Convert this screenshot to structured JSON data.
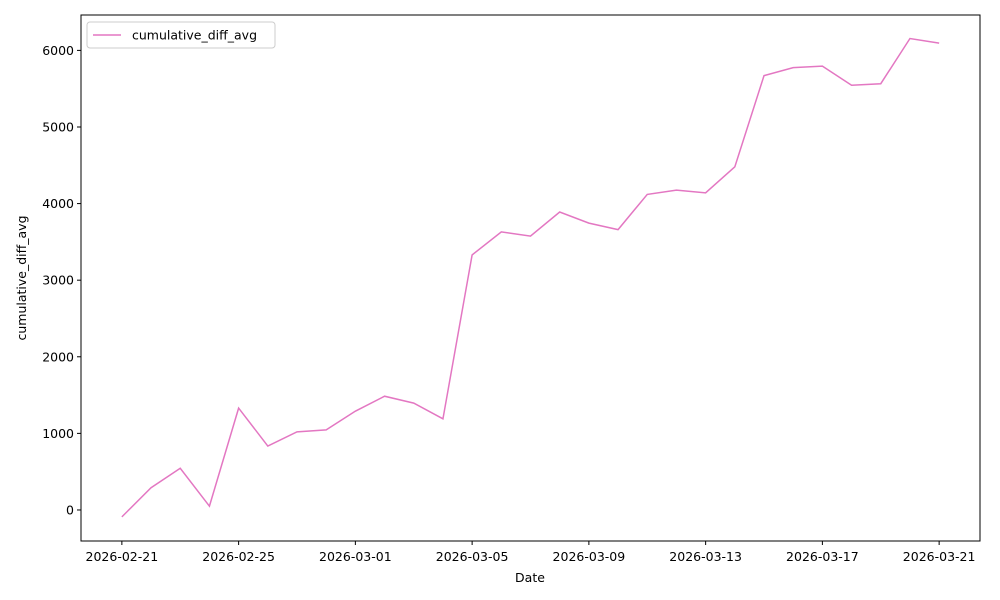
{
  "chart_data": {
    "type": "line",
    "xlabel": "Date",
    "ylabel": "cumulative_diff_avg",
    "x": [
      "2026-02-21",
      "2026-02-22",
      "2026-02-23",
      "2026-02-24",
      "2026-02-25",
      "2026-02-26",
      "2026-02-27",
      "2026-02-28",
      "2026-03-01",
      "2026-03-02",
      "2026-03-03",
      "2026-03-04",
      "2026-03-05",
      "2026-03-06",
      "2026-03-07",
      "2026-03-08",
      "2026-03-09",
      "2026-03-10",
      "2026-03-11",
      "2026-03-12",
      "2026-03-13",
      "2026-03-14",
      "2026-03-15",
      "2026-03-16",
      "2026-03-17",
      "2026-03-18",
      "2026-03-19",
      "2026-03-20",
      "2026-03-21"
    ],
    "series": [
      {
        "name": "cumulative_diff_avg",
        "color": "#e377c2",
        "values": [
          -90,
          290,
          545,
          50,
          1330,
          835,
          1020,
          1045,
          1290,
          1485,
          1395,
          1190,
          3330,
          3630,
          3575,
          3890,
          3745,
          3660,
          4120,
          4175,
          4140,
          4480,
          5670,
          5775,
          5795,
          5545,
          5565,
          6155,
          6095
        ]
      }
    ],
    "xlim": [
      "2026-02-19T14:24",
      "2026-03-22T09:36"
    ],
    "xticks": [
      "2026-02-21",
      "2026-02-25",
      "2026-03-01",
      "2026-03-05",
      "2026-03-09",
      "2026-03-13",
      "2026-03-17",
      "2026-03-21"
    ],
    "ylim": [
      -405,
      6462
    ],
    "yticks": [
      0,
      1000,
      2000,
      3000,
      4000,
      5000,
      6000
    ],
    "grid": false,
    "legend": "upper left"
  }
}
